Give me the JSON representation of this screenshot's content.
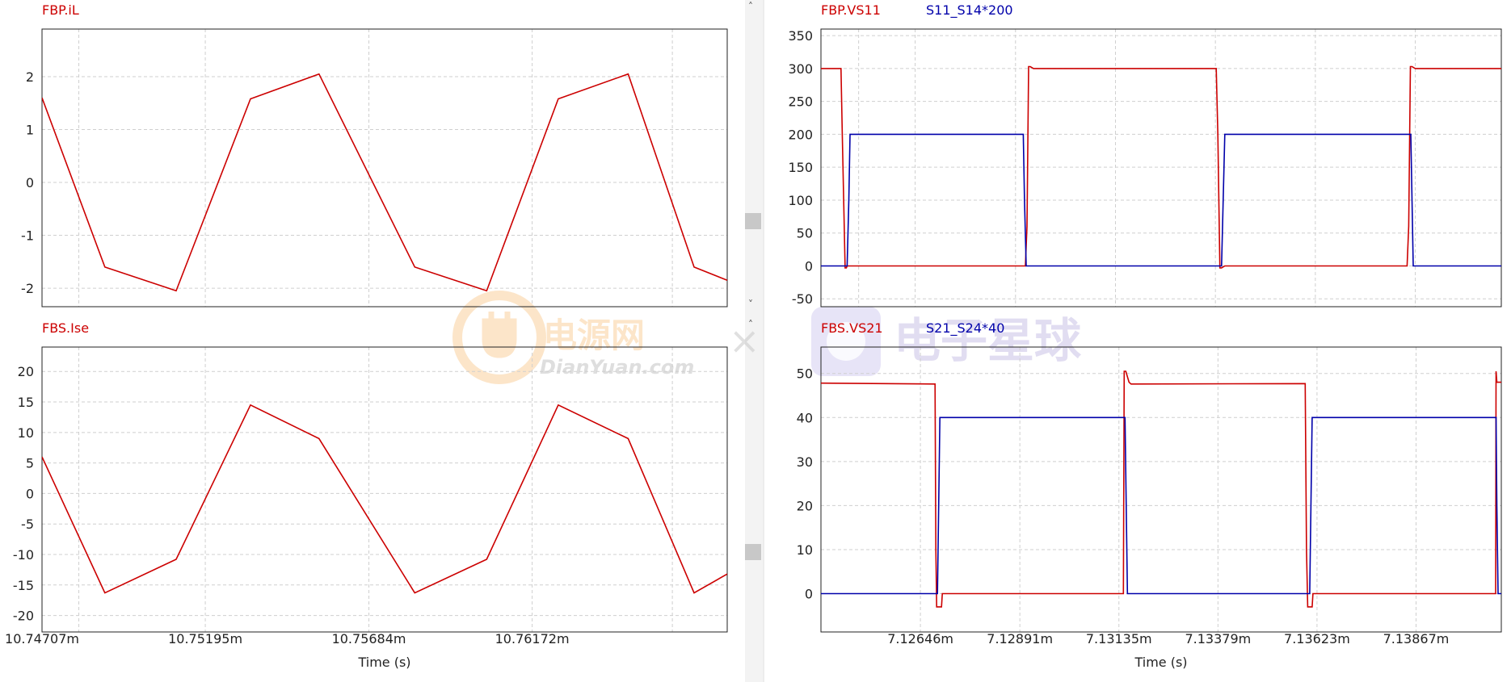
{
  "colors": {
    "red": "#cc0000",
    "blue": "#0000aa",
    "grid": "#cfcfcf",
    "axis_text": "#222222",
    "scrollbar": "#f0f0f0",
    "thumb": "#c8c8c8",
    "watermark_orange": "#f4a23a",
    "watermark_purple": "#9c8fd0"
  },
  "watermarks": {
    "left_cn": "电源网",
    "left_en": "DianYuan.com",
    "right_cn": "电子星球"
  },
  "chart_data": [
    {
      "id": "tl",
      "type": "line",
      "title": "",
      "xlabel": "",
      "ylabel": "",
      "legend": [
        {
          "text": "FBP.iL",
          "color": "#cc0000"
        }
      ],
      "ylim": [
        -2.35,
        2.9
      ],
      "yticks": [
        -2,
        -1,
        0,
        1,
        2
      ],
      "xlim": [
        10.74707,
        10.76755
      ],
      "xgrid": [
        10.74817,
        10.75195,
        10.75684,
        10.76172,
        10.76591
      ],
      "xticks": [],
      "grid": true,
      "series": [
        {
          "name": "FBP.iL",
          "color": "#cc0000",
          "x": [
            10.74707,
            10.74895,
            10.75108,
            10.7533,
            10.75535,
            10.75821,
            10.76036,
            10.7625,
            10.76459,
            10.76656,
            10.76755
          ],
          "y": [
            1.6,
            -1.6,
            -2.05,
            1.58,
            2.05,
            -1.6,
            -2.05,
            1.58,
            2.05,
            -1.6,
            -1.85
          ]
        }
      ]
    },
    {
      "id": "bl",
      "type": "line",
      "title": "",
      "xlabel": "Time (s)",
      "ylabel": "",
      "legend": [
        {
          "text": "FBS.Ise",
          "color": "#cc0000"
        }
      ],
      "ylim": [
        -22.7,
        24
      ],
      "yticks": [
        -20,
        -15,
        -10,
        -5,
        0,
        5,
        10,
        15,
        20
      ],
      "xlim": [
        10.74707,
        10.76755
      ],
      "xgrid": [
        10.74817,
        10.75195,
        10.75684,
        10.76172,
        10.76591
      ],
      "xticks": [
        {
          "label": "10.74707m",
          "v": 10.74707
        },
        {
          "label": "10.75195m",
          "v": 10.75195
        },
        {
          "label": "10.75684m",
          "v": 10.75684
        },
        {
          "label": "10.76172m",
          "v": 10.76172
        }
      ],
      "grid": true,
      "series": [
        {
          "name": "FBS.Ise",
          "color": "#cc0000",
          "x": [
            10.74707,
            10.74895,
            10.75108,
            10.7533,
            10.75535,
            10.75821,
            10.76036,
            10.7625,
            10.76459,
            10.76656,
            10.76755
          ],
          "y": [
            6,
            -16.3,
            -10.8,
            14.5,
            9,
            -16.3,
            -10.8,
            14.5,
            9,
            -16.3,
            -13.2
          ]
        }
      ]
    },
    {
      "id": "tr",
      "type": "line",
      "title": "",
      "xlabel": "",
      "ylabel": "",
      "legend": [
        {
          "text": "FBP.VS11",
          "color": "#cc0000"
        },
        {
          "text": "S11_S14*200",
          "color": "#0000aa"
        }
      ],
      "ylim": [
        -62,
        360
      ],
      "yticks": [
        -50,
        0,
        50,
        100,
        150,
        200,
        250,
        300,
        350
      ],
      "xlim": [
        7.12416,
        7.14077
      ],
      "xgrid": [
        7.12508,
        7.12646,
        7.12891,
        7.13135,
        7.13379,
        7.13623,
        7.13867
      ],
      "xticks": [],
      "grid": true,
      "series": [
        {
          "name": "FBP.VS11",
          "color": "#cc0000",
          "x": [
            7.12416,
            7.12465,
            7.12468,
            7.12475,
            7.12478,
            7.1248,
            7.12483,
            7.12484,
            7.12915,
            7.12919,
            7.12923,
            7.12927,
            7.12935,
            7.13381,
            7.13385,
            7.1339,
            7.13394,
            7.13402,
            7.13847,
            7.13851,
            7.13855,
            7.13859,
            7.13867,
            7.14077
          ],
          "y": [
            300,
            300,
            200,
            -3,
            -3,
            0,
            0,
            0,
            0,
            60,
            303,
            303,
            300,
            300,
            200,
            -3,
            -3,
            0,
            0,
            60,
            303,
            303,
            300,
            300
          ]
        },
        {
          "name": "S11_S14*200",
          "color": "#0000aa",
          "x": [
            7.12416,
            7.1248,
            7.12484,
            7.12487,
            7.1291,
            7.12913,
            7.12917,
            7.13394,
            7.13398,
            7.13402,
            7.13856,
            7.13859,
            7.13862,
            7.14077
          ],
          "y": [
            0,
            0,
            100,
            200,
            200,
            100,
            0,
            0,
            100,
            200,
            200,
            100,
            0,
            0
          ]
        }
      ]
    },
    {
      "id": "br",
      "type": "line",
      "title": "",
      "xlabel": "Time (s)",
      "ylabel": "",
      "legend": [
        {
          "text": "FBS.VS21",
          "color": "#cc0000"
        },
        {
          "text": "S21_S24*40",
          "color": "#0000aa"
        }
      ],
      "ylim": [
        -8.7,
        56
      ],
      "yticks": [
        0,
        10,
        20,
        30,
        40,
        50
      ],
      "xlim": [
        7.12401,
        7.14077
      ],
      "xgrid": [
        7.12646,
        7.12891,
        7.13135,
        7.13379,
        7.13623,
        7.13867
      ],
      "xticks": [
        {
          "label": "7.12646m",
          "v": 7.12646
        },
        {
          "label": "7.12891m",
          "v": 7.12891
        },
        {
          "label": "7.13135m",
          "v": 7.13135
        },
        {
          "label": "7.13379m",
          "v": 7.13379
        },
        {
          "label": "7.13623m",
          "v": 7.13623
        },
        {
          "label": "7.13867m",
          "v": 7.13867
        }
      ],
      "grid": true,
      "series": [
        {
          "name": "FBS.VS21",
          "color": "#cc0000",
          "x": [
            7.12401,
            7.12682,
            7.12684,
            7.12686,
            7.12698,
            7.127,
            7.13125,
            7.13146,
            7.13148,
            7.13152,
            7.1316,
            7.13165,
            7.13594,
            7.13597,
            7.136,
            7.13611,
            7.13613,
            7.14061,
            7.14063,
            7.14064,
            7.14066,
            7.14077
          ],
          "y": [
            47.8,
            47.6,
            10,
            -3,
            -3,
            0,
            0,
            0,
            50.5,
            50.5,
            48,
            47.6,
            47.7,
            10,
            -3,
            -3,
            0,
            0,
            0,
            50.5,
            48,
            48
          ]
        },
        {
          "name": "S21_S24*40",
          "color": "#0000aa",
          "x": [
            7.12401,
            7.12688,
            7.12691,
            7.12694,
            7.1315,
            7.13153,
            7.13156,
            7.13605,
            7.13608,
            7.13611,
            7.14064,
            7.14066,
            7.14069,
            7.14077
          ],
          "y": [
            0,
            0,
            20,
            40,
            40,
            20,
            0,
            0,
            20,
            40,
            40,
            20,
            0,
            0
          ]
        }
      ]
    }
  ]
}
